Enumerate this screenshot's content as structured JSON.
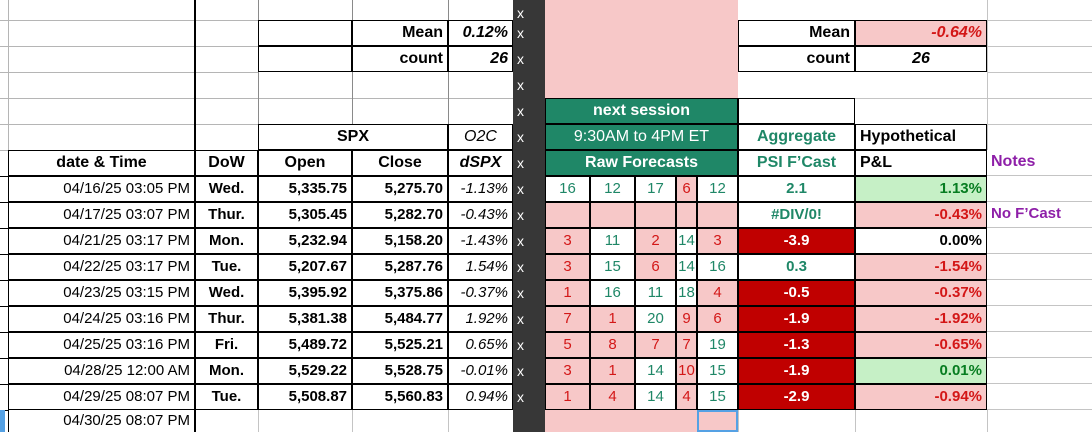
{
  "x_marker": "x",
  "left_summary": {
    "mean_label": "Mean",
    "mean_value": "0.12%",
    "count_label": "count",
    "count_value": "26"
  },
  "right_summary": {
    "mean_label": "Mean",
    "mean_value": "-0.64%",
    "count_label": "count",
    "count_value": "26"
  },
  "headers": {
    "spx_group": "SPX",
    "o2c": "O2C",
    "date": "date & Time",
    "dow": "DoW",
    "open": "Open",
    "close": "Close",
    "dspx": "dSPX",
    "next_session": "next session",
    "session_hours": "9:30AM to 4PM ET",
    "raw_forecasts": "Raw Forecasts",
    "aggregate": "Aggregate",
    "psi_fcast": "PSI F’Cast",
    "hypothetical": "Hypothetical",
    "pnl": "P&L",
    "notes": "Notes"
  },
  "colors": {
    "teal_green": "#1F8767",
    "dark_red": "#C00000",
    "red_text": "#D31717",
    "pink": "#F7C8C8",
    "light_green": "#C6F0C6",
    "dark_green_text": "#077D21",
    "purple": "#8E1FA8",
    "selection_blue": "#55A1E4",
    "x_band_gray": "#373737"
  },
  "rows": [
    {
      "date": "04/16/25 03:05 PM",
      "dow": "Wed.",
      "open": "5,335.75",
      "close": "5,275.70",
      "dspx": "-1.13%",
      "forecasts": [
        {
          "v": "16",
          "state": "pos"
        },
        {
          "v": "12",
          "state": "pos"
        },
        {
          "v": "17",
          "state": "pos"
        },
        {
          "v": "6",
          "state": "neg"
        },
        {
          "v": "12",
          "state": "pos"
        }
      ],
      "psi": {
        "v": "2.1",
        "state": "pos"
      },
      "pnl": {
        "v": "1.13%",
        "state": "gain"
      },
      "note": ""
    },
    {
      "date": "04/17/25 03:07 PM",
      "dow": "Thur.",
      "open": "5,305.45",
      "close": "5,282.70",
      "dspx": "-0.43%",
      "forecasts": [
        {
          "v": "",
          "state": "blank"
        },
        {
          "v": "",
          "state": "blank"
        },
        {
          "v": "",
          "state": "blank"
        },
        {
          "v": "",
          "state": "blank"
        },
        {
          "v": "",
          "state": "blank"
        }
      ],
      "psi": {
        "v": "#DIV/0!",
        "state": "pos"
      },
      "pnl": {
        "v": "-0.43%",
        "state": "loss"
      },
      "note": "No F’Cast"
    },
    {
      "date": "04/21/25 03:17 PM",
      "dow": "Mon.",
      "open": "5,232.94",
      "close": "5,158.20",
      "dspx": "-1.43%",
      "forecasts": [
        {
          "v": "3",
          "state": "neg"
        },
        {
          "v": "11",
          "state": "pos"
        },
        {
          "v": "2",
          "state": "neg"
        },
        {
          "v": "14",
          "state": "pos"
        },
        {
          "v": "3",
          "state": "neg"
        }
      ],
      "psi": {
        "v": "-3.9",
        "state": "neg"
      },
      "pnl": {
        "v": "0.00%",
        "state": "zero"
      },
      "note": ""
    },
    {
      "date": "04/22/25 03:17 PM",
      "dow": "Tue.",
      "open": "5,207.67",
      "close": "5,287.76",
      "dspx": "1.54%",
      "forecasts": [
        {
          "v": "3",
          "state": "neg"
        },
        {
          "v": "15",
          "state": "pos"
        },
        {
          "v": "6",
          "state": "neg"
        },
        {
          "v": "14",
          "state": "pos"
        },
        {
          "v": "16",
          "state": "pos"
        }
      ],
      "psi": {
        "v": "0.3",
        "state": "pos"
      },
      "pnl": {
        "v": "-1.54%",
        "state": "loss"
      },
      "note": ""
    },
    {
      "date": "04/23/25 03:15 PM",
      "dow": "Wed.",
      "open": "5,395.92",
      "close": "5,375.86",
      "dspx": "-0.37%",
      "forecasts": [
        {
          "v": "1",
          "state": "neg"
        },
        {
          "v": "16",
          "state": "pos"
        },
        {
          "v": "11",
          "state": "pos"
        },
        {
          "v": "18",
          "state": "pos"
        },
        {
          "v": "4",
          "state": "neg"
        }
      ],
      "psi": {
        "v": "-0.5",
        "state": "neg"
      },
      "pnl": {
        "v": "-0.37%",
        "state": "loss"
      },
      "note": ""
    },
    {
      "date": "04/24/25 03:16 PM",
      "dow": "Thur.",
      "open": "5,381.38",
      "close": "5,484.77",
      "dspx": "1.92%",
      "forecasts": [
        {
          "v": "7",
          "state": "neg"
        },
        {
          "v": "1",
          "state": "neg"
        },
        {
          "v": "20",
          "state": "pos"
        },
        {
          "v": "9",
          "state": "neg"
        },
        {
          "v": "6",
          "state": "neg"
        }
      ],
      "psi": {
        "v": "-1.9",
        "state": "neg"
      },
      "pnl": {
        "v": "-1.92%",
        "state": "loss"
      },
      "note": ""
    },
    {
      "date": "04/25/25 03:16 PM",
      "dow": "Fri.",
      "open": "5,489.72",
      "close": "5,525.21",
      "dspx": "0.65%",
      "forecasts": [
        {
          "v": "5",
          "state": "neg"
        },
        {
          "v": "8",
          "state": "neg"
        },
        {
          "v": "7",
          "state": "neg"
        },
        {
          "v": "7",
          "state": "neg"
        },
        {
          "v": "19",
          "state": "pos"
        }
      ],
      "psi": {
        "v": "-1.3",
        "state": "neg"
      },
      "pnl": {
        "v": "-0.65%",
        "state": "loss"
      },
      "note": ""
    },
    {
      "date": "04/28/25 12:00 AM",
      "dow": "Mon.",
      "open": "5,529.22",
      "close": "5,528.75",
      "dspx": "-0.01%",
      "forecasts": [
        {
          "v": "3",
          "state": "neg"
        },
        {
          "v": "1",
          "state": "neg"
        },
        {
          "v": "14",
          "state": "pos"
        },
        {
          "v": "10",
          "state": "neg"
        },
        {
          "v": "15",
          "state": "pos"
        }
      ],
      "psi": {
        "v": "-1.9",
        "state": "neg"
      },
      "pnl": {
        "v": "0.01%",
        "state": "gain"
      },
      "note": ""
    },
    {
      "date": "04/29/25 08:07 PM",
      "dow": "Tue.",
      "open": "5,508.87",
      "close": "5,560.83",
      "dspx": "0.94%",
      "forecasts": [
        {
          "v": "1",
          "state": "neg"
        },
        {
          "v": "4",
          "state": "neg"
        },
        {
          "v": "14",
          "state": "pos"
        },
        {
          "v": "4",
          "state": "neg"
        },
        {
          "v": "15",
          "state": "pos"
        }
      ],
      "psi": {
        "v": "-2.9",
        "state": "neg"
      },
      "pnl": {
        "v": "-0.94%",
        "state": "loss"
      },
      "note": ""
    }
  ],
  "last_row": {
    "date": "04/30/25 08:07 PM"
  }
}
